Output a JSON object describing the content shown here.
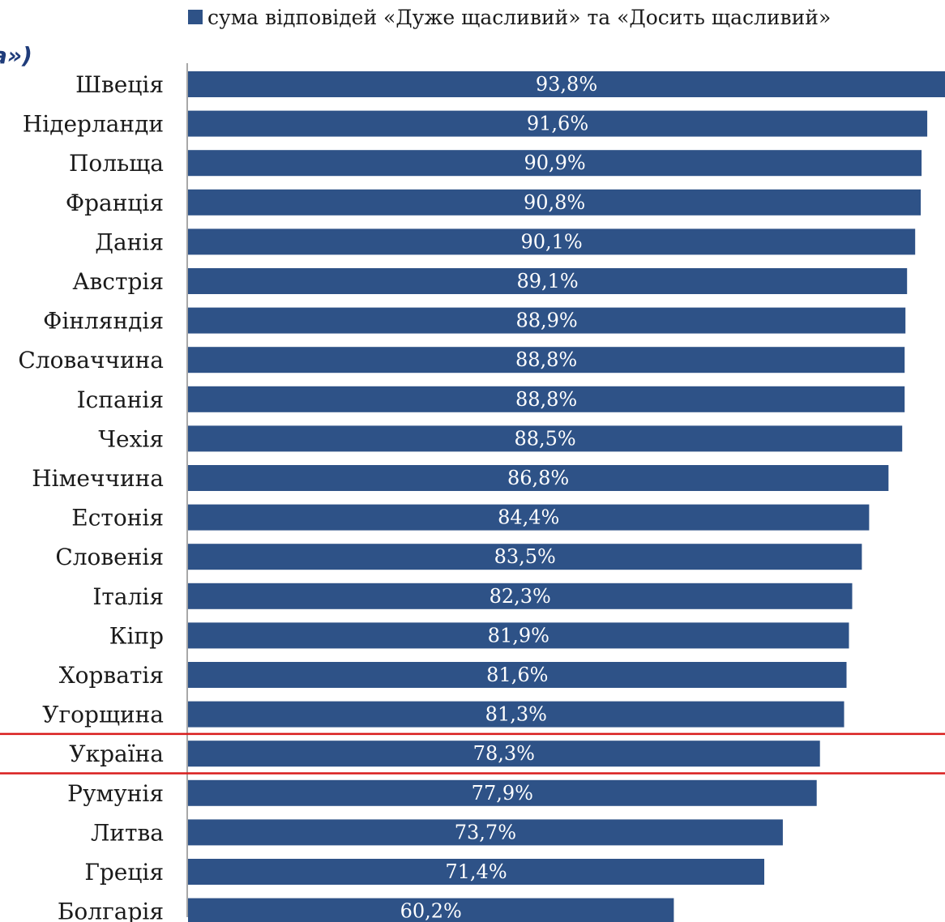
{
  "partial_title": "а»)",
  "chart_data": {
    "type": "bar",
    "orientation": "horizontal",
    "categories": [
      "Швеція",
      "Нідерланди",
      "Польща",
      "Франція",
      "Данія",
      "Австрія",
      "Фінляндія",
      "Словаччина",
      "Іспанія",
      "Чехія",
      "Німеччина",
      "Естонія",
      "Словенія",
      "Італія",
      "Кіпр",
      "Хорватія",
      "Угорщина",
      "Україна",
      "Румунія",
      "Литва",
      "Греція",
      "Болгарія"
    ],
    "values": [
      93.8,
      91.6,
      90.9,
      90.8,
      90.1,
      89.1,
      88.9,
      88.8,
      88.8,
      88.5,
      86.8,
      84.4,
      83.5,
      82.3,
      81.9,
      81.6,
      81.3,
      78.3,
      77.9,
      73.7,
      71.4,
      60.2
    ],
    "value_labels": [
      "93,8%",
      "91,6%",
      "90,9%",
      "90,8%",
      "90,1%",
      "89,1%",
      "88,9%",
      "88,8%",
      "88,8%",
      "88,5%",
      "86,8%",
      "84,4%",
      "83,5%",
      "82,3%",
      "81,9%",
      "81,6%",
      "81,3%",
      "78,3%",
      "77,9%",
      "73,7%",
      "71,4%",
      "60,2%"
    ],
    "series": [
      {
        "name": "сума відповідей «Дуже щасливий» та «Досить щасливий»",
        "color": "#2e5287"
      }
    ],
    "legend": "top-right",
    "highlighted_category": "Україна",
    "highlight_color": "#d91c1c",
    "bar_color": "#2e5287",
    "xlim": [
      0,
      100
    ],
    "grid": false
  }
}
